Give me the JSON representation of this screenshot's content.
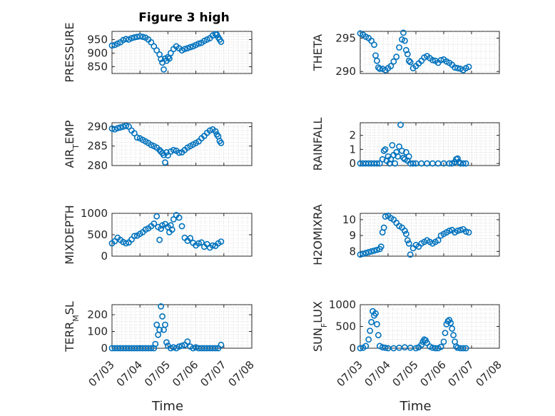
{
  "figure_title": "Figure 3 high",
  "marker_color": "#0072BD",
  "chart_data": [
    {
      "type": "scatter",
      "id": "pressure",
      "ylabel": "PRESSURE",
      "xlabel": "",
      "title": "Figure 3 high",
      "ylim": [
        825,
        980
      ],
      "yticks": [
        850,
        900,
        950
      ],
      "xlim": [
        "07/03",
        "07/08"
      ],
      "grid": true,
      "x_day_offsets_from_07_03": [
        0,
        0.1,
        0.2,
        0.3,
        0.4,
        0.5,
        0.6,
        0.7,
        0.8,
        0.9,
        1.0,
        1.1,
        1.2,
        1.3,
        1.4,
        1.5,
        1.6,
        1.7,
        1.75,
        1.8,
        1.85,
        1.9,
        1.95,
        2.0,
        2.05,
        2.1,
        2.2,
        2.3,
        2.4,
        2.5,
        2.6,
        2.7,
        2.8,
        2.9,
        3.0,
        3.1,
        3.2,
        3.3,
        3.4,
        3.5,
        3.6,
        3.7,
        3.75,
        3.8,
        3.85,
        3.9
      ],
      "y": [
        928,
        930,
        935,
        940,
        948,
        952,
        950,
        955,
        958,
        960,
        962,
        960,
        957,
        950,
        940,
        925,
        910,
        895,
        878,
        865,
        840,
        880,
        872,
        885,
        880,
        900,
        915,
        925,
        918,
        910,
        915,
        918,
        922,
        925,
        930,
        935,
        938,
        945,
        950,
        955,
        965,
        970,
        968,
        958,
        950,
        942
      ]
    },
    {
      "type": "scatter",
      "id": "theta",
      "ylabel": "THETA",
      "xlabel": "",
      "title": "",
      "ylim": [
        289.7,
        296
      ],
      "yticks": [
        290,
        295
      ],
      "xlim": [
        "07/03",
        "07/08"
      ],
      "grid": true,
      "x_day_offsets_from_07_03": [
        0,
        0.1,
        0.2,
        0.3,
        0.4,
        0.5,
        0.55,
        0.6,
        0.65,
        0.7,
        0.8,
        0.9,
        1.0,
        1.1,
        1.2,
        1.3,
        1.4,
        1.5,
        1.55,
        1.6,
        1.65,
        1.7,
        1.75,
        1.8,
        1.9,
        2.0,
        2.1,
        2.2,
        2.3,
        2.4,
        2.5,
        2.6,
        2.7,
        2.8,
        2.9,
        3.0,
        3.1,
        3.2,
        3.3,
        3.4,
        3.5,
        3.6,
        3.7,
        3.8,
        3.9
      ],
      "y": [
        295.7,
        295.5,
        295.2,
        295,
        294.6,
        294,
        292.4,
        291.6,
        290.6,
        290.4,
        290.4,
        290.2,
        290.5,
        290.8,
        291.5,
        292.2,
        293.6,
        294.8,
        295.8,
        294.6,
        293.2,
        292.6,
        291.6,
        291.4,
        290.5,
        290.8,
        291.2,
        291.6,
        292.1,
        292.3,
        292,
        291.7,
        291.6,
        291.3,
        291.7,
        291.8,
        291.5,
        291.3,
        291,
        290.6,
        290.5,
        290.4,
        290.2,
        290.5,
        290.7
      ]
    },
    {
      "type": "scatter",
      "id": "air_temp",
      "ylabel": "AIR_TEMP",
      "xlabel": "",
      "title": "",
      "ylim": [
        280,
        291
      ],
      "yticks": [
        280,
        285,
        290
      ],
      "xlim": [
        "07/03",
        "07/08"
      ],
      "grid": true,
      "x_day_offsets_from_07_03": [
        0,
        0.1,
        0.2,
        0.3,
        0.4,
        0.5,
        0.6,
        0.7,
        0.8,
        0.9,
        1.0,
        1.1,
        1.2,
        1.3,
        1.4,
        1.5,
        1.6,
        1.7,
        1.75,
        1.8,
        1.85,
        1.9,
        1.95,
        2.0,
        2.1,
        2.2,
        2.3,
        2.4,
        2.5,
        2.6,
        2.7,
        2.8,
        2.9,
        3.0,
        3.1,
        3.2,
        3.3,
        3.4,
        3.5,
        3.6,
        3.7,
        3.75,
        3.8,
        3.85,
        3.9
      ],
      "y": [
        289.5,
        289.3,
        289.6,
        289.8,
        290,
        290.2,
        290,
        289,
        288.3,
        287.2,
        287,
        286.6,
        286.2,
        285.8,
        285.3,
        285,
        284.6,
        284,
        283.6,
        283.2,
        282.7,
        280.8,
        283.4,
        282.6,
        283.6,
        284,
        283.8,
        283.3,
        283.4,
        284,
        284.6,
        285,
        285.4,
        285.8,
        286.2,
        287,
        287.6,
        288.4,
        289,
        289.3,
        288.8,
        288,
        287.5,
        286.3,
        285.8
      ]
    },
    {
      "type": "scatter",
      "id": "rainfall",
      "ylabel": "RAINFALL",
      "xlabel": "",
      "title": "",
      "ylim": [
        -0.15,
        2.9
      ],
      "yticks": [
        0,
        1,
        2
      ],
      "xlim": [
        "07/03",
        "07/08"
      ],
      "grid": true,
      "x_day_offsets_from_07_03": [
        0,
        0.1,
        0.2,
        0.3,
        0.4,
        0.5,
        0.6,
        0.7,
        0.8,
        0.85,
        0.9,
        0.95,
        1.0,
        1.05,
        1.1,
        1.15,
        1.2,
        1.25,
        1.3,
        1.35,
        1.4,
        1.45,
        1.5,
        1.55,
        1.6,
        1.65,
        1.7,
        1.75,
        1.8,
        1.9,
        2.0,
        2.2,
        2.4,
        2.6,
        2.8,
        3.0,
        3.2,
        3.3,
        3.4,
        3.45,
        3.5,
        3.55,
        3.6,
        3.7,
        3.8
      ],
      "y": [
        0,
        0,
        0,
        0,
        0,
        0,
        0,
        0,
        0.3,
        0.9,
        1.0,
        0.2,
        0.5,
        0,
        0.3,
        1.3,
        0.6,
        0,
        0.8,
        0.5,
        1.2,
        2.75,
        0.9,
        0.4,
        0.3,
        0.8,
        0.2,
        0.5,
        0,
        0,
        0,
        0,
        0,
        0,
        0,
        0,
        0,
        0,
        0.1,
        0.3,
        0.35,
        0.1,
        0,
        0,
        0
      ]
    },
    {
      "type": "scatter",
      "id": "mixdepth",
      "ylabel": "MIXDEPTH",
      "xlabel": "",
      "title": "",
      "ylim": [
        0,
        1000
      ],
      "yticks": [
        0,
        500,
        1000
      ],
      "xlim": [
        "07/03",
        "07/08"
      ],
      "grid": true,
      "x_day_offsets_from_07_03": [
        0,
        0.1,
        0.2,
        0.3,
        0.4,
        0.5,
        0.6,
        0.7,
        0.8,
        0.9,
        1.0,
        1.1,
        1.2,
        1.3,
        1.4,
        1.5,
        1.6,
        1.65,
        1.7,
        1.75,
        1.8,
        1.9,
        2.0,
        2.05,
        2.1,
        2.15,
        2.2,
        2.3,
        2.4,
        2.5,
        2.6,
        2.7,
        2.8,
        2.9,
        3.0,
        3.1,
        3.2,
        3.3,
        3.4,
        3.5,
        3.6,
        3.7,
        3.8,
        3.9
      ],
      "y": [
        300,
        350,
        430,
        380,
        330,
        300,
        320,
        390,
        470,
        480,
        520,
        560,
        620,
        650,
        700,
        760,
        930,
        680,
        380,
        640,
        720,
        750,
        680,
        560,
        720,
        620,
        860,
        960,
        900,
        700,
        430,
        360,
        420,
        310,
        250,
        300,
        320,
        220,
        280,
        200,
        250,
        240,
        300,
        340
      ]
    },
    {
      "type": "scatter",
      "id": "h2omixra",
      "ylabel": "H2OMIXRA",
      "xlabel": "",
      "title": "",
      "ylim": [
        7.7,
        10.4
      ],
      "yticks": [
        8,
        9,
        10
      ],
      "xlim": [
        "07/03",
        "07/08"
      ],
      "grid": true,
      "x_day_offsets_from_07_03": [
        0,
        0.1,
        0.2,
        0.3,
        0.4,
        0.5,
        0.6,
        0.7,
        0.75,
        0.8,
        0.85,
        0.9,
        1.0,
        1.1,
        1.2,
        1.3,
        1.4,
        1.5,
        1.6,
        1.65,
        1.7,
        1.75,
        1.8,
        1.9,
        2.0,
        2.1,
        2.2,
        2.3,
        2.4,
        2.5,
        2.6,
        2.7,
        2.8,
        2.9,
        3.0,
        3.1,
        3.2,
        3.3,
        3.4,
        3.5,
        3.6,
        3.7,
        3.8,
        3.9
      ],
      "y": [
        7.8,
        7.85,
        7.9,
        7.95,
        8.0,
        8.05,
        8.1,
        8.15,
        8.3,
        9.2,
        9.5,
        10.2,
        10.25,
        10.1,
        10.0,
        9.8,
        9.6,
        9.5,
        9.3,
        9.1,
        8.7,
        8.5,
        7.8,
        8.2,
        8.4,
        8.3,
        8.5,
        8.6,
        8.7,
        8.6,
        8.5,
        8.6,
        8.7,
        9.0,
        9.1,
        9.2,
        9.3,
        9.35,
        9.2,
        9.3,
        9.35,
        9.4,
        9.25,
        9.2
      ]
    },
    {
      "type": "scatter",
      "id": "terr_msl",
      "ylabel": "TERR_MSL",
      "xlabel": "Time",
      "title": "",
      "ylim": [
        0,
        260
      ],
      "yticks": [
        0,
        100,
        200
      ],
      "xlim": [
        "07/03",
        "07/08"
      ],
      "grid": true,
      "xticklabels": [
        "07/03",
        "07/04",
        "07/05",
        "07/06",
        "07/07",
        "07/08"
      ],
      "x_day_offsets_from_07_03": [
        0,
        0.1,
        0.2,
        0.3,
        0.4,
        0.5,
        0.6,
        0.7,
        0.8,
        0.9,
        1.0,
        1.1,
        1.2,
        1.3,
        1.4,
        1.5,
        1.55,
        1.6,
        1.65,
        1.7,
        1.75,
        1.8,
        1.85,
        1.9,
        1.95,
        2.0,
        2.1,
        2.2,
        2.3,
        2.4,
        2.5,
        2.6,
        2.7,
        2.8,
        2.9,
        3.0,
        3.1,
        3.2,
        3.3,
        3.4,
        3.5,
        3.6,
        3.7,
        3.8,
        3.9
      ],
      "y": [
        0,
        0,
        0,
        0,
        0,
        0,
        0,
        0,
        0,
        0,
        0,
        0,
        0,
        0,
        0,
        0,
        25,
        140,
        80,
        110,
        250,
        190,
        110,
        140,
        35,
        15,
        0,
        5,
        0,
        10,
        15,
        20,
        40,
        10,
        0,
        5,
        0,
        0,
        0,
        0,
        0,
        0,
        0,
        0,
        20
      ]
    },
    {
      "type": "scatter",
      "id": "sun_flux",
      "ylabel": "SUN_FLUX",
      "xlabel": "Time",
      "title": "",
      "ylim": [
        0,
        1000
      ],
      "yticks": [
        0,
        500,
        1000
      ],
      "xlim": [
        "07/03",
        "07/08"
      ],
      "grid": true,
      "xticklabels": [
        "07/03",
        "07/04",
        "07/05",
        "07/06",
        "07/07",
        "07/08"
      ],
      "x_day_offsets_from_07_03": [
        0,
        0.1,
        0.2,
        0.3,
        0.35,
        0.4,
        0.45,
        0.5,
        0.55,
        0.6,
        0.65,
        0.7,
        0.8,
        0.9,
        1.0,
        1.2,
        1.4,
        1.6,
        1.8,
        2.0,
        2.1,
        2.2,
        2.25,
        2.3,
        2.35,
        2.4,
        2.5,
        2.6,
        2.7,
        2.8,
        2.9,
        3.0,
        3.05,
        3.1,
        3.15,
        3.2,
        3.25,
        3.3,
        3.35,
        3.4,
        3.45,
        3.5,
        3.6,
        3.7,
        3.8
      ],
      "y": [
        0,
        10,
        50,
        200,
        400,
        600,
        850,
        750,
        800,
        550,
        300,
        50,
        20,
        10,
        0,
        0,
        10,
        20,
        10,
        0,
        20,
        80,
        150,
        200,
        180,
        120,
        40,
        10,
        0,
        0,
        30,
        150,
        350,
        550,
        620,
        650,
        580,
        450,
        300,
        150,
        40,
        10,
        0,
        0,
        0
      ]
    }
  ],
  "panels": [
    {
      "ylabel_main": "PRESSURE",
      "ylabel_sub": "",
      "ylabel_tail": "",
      "yticks": [
        "850",
        "900",
        "950"
      ]
    },
    {
      "ylabel_main": "THETA",
      "ylabel_sub": "",
      "ylabel_tail": "",
      "yticks": [
        "290",
        "295"
      ]
    },
    {
      "ylabel_main": "AIR",
      "ylabel_sub": "T",
      "ylabel_tail": "EMP",
      "yticks": [
        "280",
        "285",
        "290"
      ]
    },
    {
      "ylabel_main": "RAINFALL",
      "ylabel_sub": "",
      "ylabel_tail": "",
      "yticks": [
        "0",
        "1",
        "2"
      ]
    },
    {
      "ylabel_main": "MIXDEPTH",
      "ylabel_sub": "",
      "ylabel_tail": "",
      "yticks": [
        "0",
        "500",
        "1000"
      ]
    },
    {
      "ylabel_main": "H2OMIXRA",
      "ylabel_sub": "",
      "ylabel_tail": "",
      "yticks": [
        "8",
        "9",
        "10"
      ]
    },
    {
      "ylabel_main": "TERR",
      "ylabel_sub": "M",
      "ylabel_tail": "SL",
      "yticks": [
        "0",
        "100",
        "200"
      ]
    },
    {
      "ylabel_main": "SUN",
      "ylabel_sub": "F",
      "ylabel_tail": "LUX",
      "yticks": [
        "0",
        "500",
        "1000"
      ]
    }
  ],
  "x_axis": {
    "label": "Time",
    "ticks": [
      "07/03",
      "07/04",
      "07/05",
      "07/06",
      "07/07",
      "07/08"
    ]
  }
}
